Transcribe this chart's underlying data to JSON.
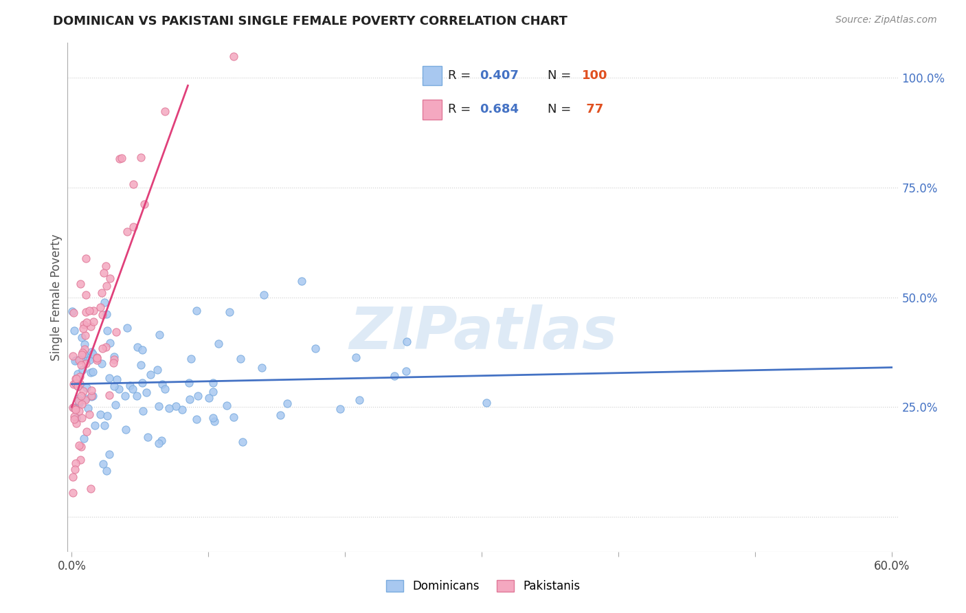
{
  "title": "DOMINICAN VS PAKISTANI SINGLE FEMALE POVERTY CORRELATION CHART",
  "source": "Source: ZipAtlas.com",
  "ylabel": "Single Female Poverty",
  "ytick_labels": [
    "",
    "25.0%",
    "50.0%",
    "75.0%",
    "100.0%"
  ],
  "ytick_vals": [
    0.0,
    0.25,
    0.5,
    0.75,
    1.0
  ],
  "xlim": [
    -0.003,
    0.605
  ],
  "ylim": [
    -0.08,
    1.08
  ],
  "watermark": "ZIPatlas",
  "dom_R": 0.407,
  "dom_N": 100,
  "pak_R": 0.684,
  "pak_N": 77,
  "dom_color": "#a8c8f0",
  "pak_color": "#f4a8c0",
  "dom_edge_color": "#7aabde",
  "pak_edge_color": "#e07898",
  "dom_trend_color": "#4472c4",
  "pak_trend_color": "#e0407a",
  "legend_R_color": "#4472c4",
  "legend_N_color": "#e05020",
  "title_color": "#222222",
  "source_color": "#888888",
  "ylabel_color": "#555555",
  "ytick_color": "#4472c4",
  "grid_color": "#c8c8c8",
  "watermark_color": "#c8ddf0",
  "seed_dom": 42,
  "seed_pak": 77
}
